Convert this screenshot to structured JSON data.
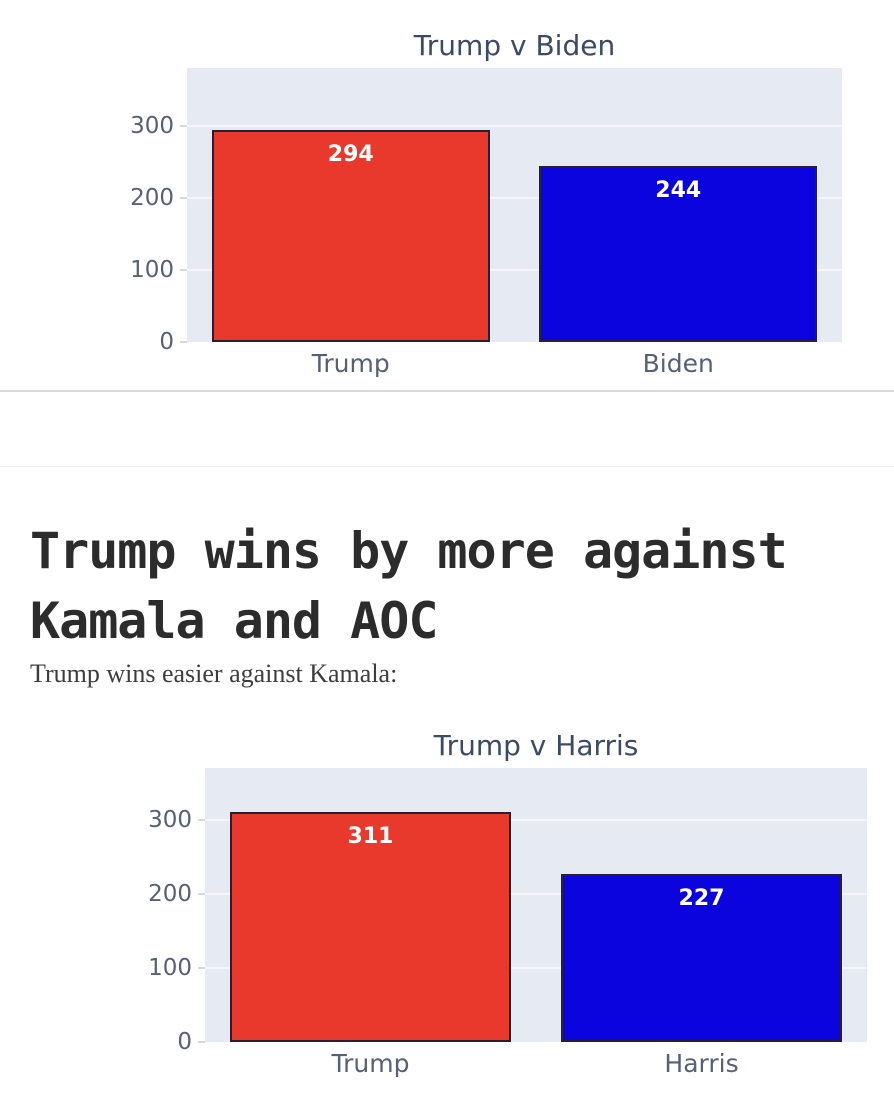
{
  "article": {
    "heading": "Trump wins by more against Kamala and AOC",
    "lead_paragraph": "Trump wins easier against Kamala:"
  },
  "chart_data": [
    {
      "type": "bar",
      "title": "Trump v Biden",
      "categories": [
        "Trump",
        "Biden"
      ],
      "values": [
        294,
        244
      ],
      "bar_labels": [
        "294",
        "244"
      ],
      "bar_colors": [
        "#e8392c",
        "#0c04df"
      ],
      "xlabel": "",
      "ylabel": "",
      "yticks": [
        0,
        100,
        200,
        300
      ],
      "ylim": [
        0,
        380
      ],
      "grid": true,
      "legend_position": "none"
    },
    {
      "type": "bar",
      "title": "Trump v Harris",
      "categories": [
        "Trump",
        "Harris"
      ],
      "values": [
        311,
        227
      ],
      "bar_labels": [
        "311",
        "227"
      ],
      "bar_colors": [
        "#e8392c",
        "#0c04df"
      ],
      "xlabel": "",
      "ylabel": "",
      "yticks": [
        0,
        100,
        200,
        300
      ],
      "ylim": [
        0,
        371
      ],
      "grid": true,
      "legend_position": "none"
    }
  ],
  "theme": {
    "bar_red": "#e8392c",
    "bar_blue": "#0c04df",
    "bar_border": "#262033",
    "plot_background": "#e6eaf2",
    "gridline": "#f4f6fa",
    "axis_text": "#566077",
    "chart_title_text": "#3b4a66",
    "heading_text": "#2c2c2c",
    "body_text": "#3d3d3d"
  }
}
